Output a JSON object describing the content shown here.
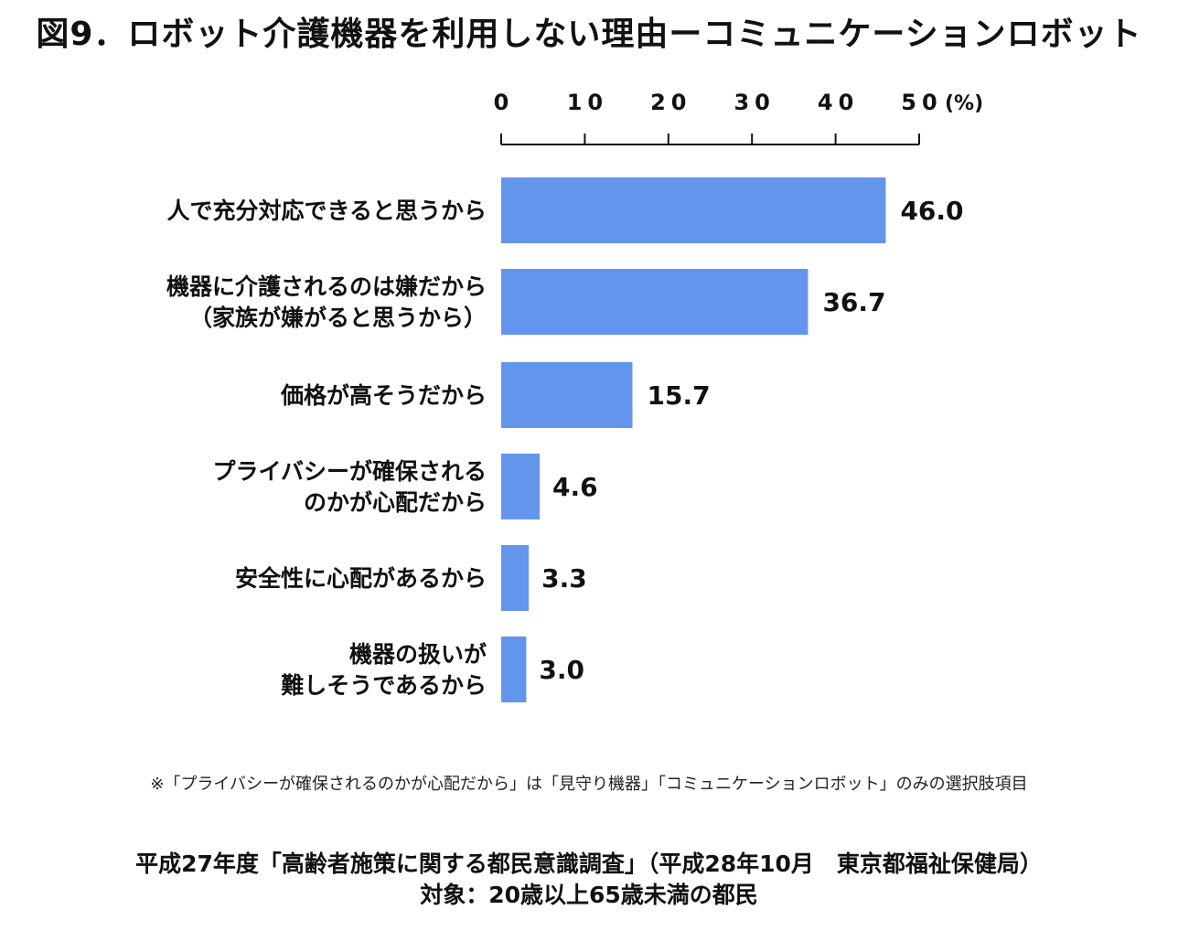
{
  "title": "図9．ロボット介護機器を利用しない理由ーコミュニケーションロボット",
  "chart_data": {
    "type": "bar",
    "orientation": "horizontal",
    "categories": [
      [
        "人で充分対応できると思うから"
      ],
      [
        "機器に介護されるのは嫌だから",
        "（家族が嫌がると思うから）"
      ],
      [
        "価格が高そうだから"
      ],
      [
        "プライバシーが確保される",
        "のかが心配だから"
      ],
      [
        "安全性に心配があるから"
      ],
      [
        "機器の扱いが",
        "難しそうであるから"
      ]
    ],
    "values": [
      46.0,
      36.7,
      15.7,
      4.6,
      3.3,
      3.0
    ],
    "value_labels": [
      "46.0",
      "36.7",
      "15.7",
      "4.6",
      "3.3",
      "3.0"
    ],
    "xlim": [
      0,
      50
    ],
    "x_ticks": [
      0,
      10,
      20,
      30,
      40,
      50
    ],
    "x_tick_labels": [
      "0",
      "10",
      "20",
      "30",
      "40",
      "50"
    ],
    "x_unit": "(%)",
    "axis_position": "top",
    "bar_color": "#6495ed",
    "grid": false
  },
  "note": "※「プライバシーが確保されるのかが心配だから」は「見守り機器」「コミュニケーションロボット」のみの選択肢項目",
  "source": {
    "line1": "平成27年度「高齢者施策に関する都民意識調査」（平成28年10月　東京都福祉保健局）",
    "line2": "対象：20歳以上65歳未満の都民"
  }
}
